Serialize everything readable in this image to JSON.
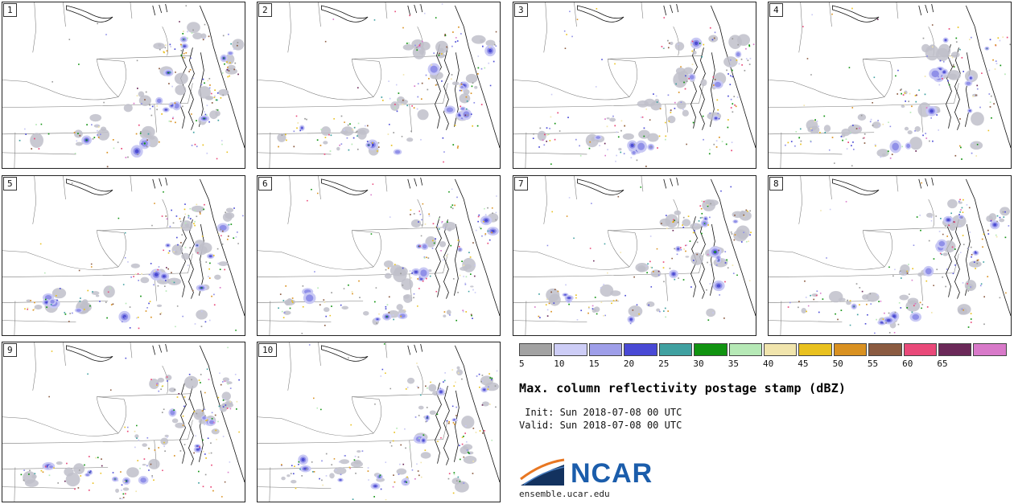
{
  "panels": [
    {
      "label": "1"
    },
    {
      "label": "2"
    },
    {
      "label": "3"
    },
    {
      "label": "4"
    },
    {
      "label": "5"
    },
    {
      "label": "6"
    },
    {
      "label": "7"
    },
    {
      "label": "8"
    },
    {
      "label": "9"
    },
    {
      "label": "10"
    }
  ],
  "colorbar": {
    "tick_labels": [
      "5",
      "10",
      "15",
      "20",
      "25",
      "30",
      "35",
      "40",
      "45",
      "50",
      "55",
      "60",
      "65"
    ],
    "segment_colors": [
      "#a2a2a2",
      "#cdcdf6",
      "#9e9ee9",
      "#4949d5",
      "#40a1a1",
      "#119311",
      "#b6e9b6",
      "#f1e5ad",
      "#e9c11f",
      "#d99121",
      "#8b5b41",
      "#e94979",
      "#6b2959",
      "#d879c9"
    ]
  },
  "info": {
    "title": "Max. column reflectivity postage stamp (dBZ)",
    "init_line": " Init: Sun 2018-07-08 00 UTC",
    "valid_line": "Valid: Sun 2018-07-08 00 UTC",
    "logo_text": "NCAR",
    "website": "ensemble.ucar.edu"
  }
}
